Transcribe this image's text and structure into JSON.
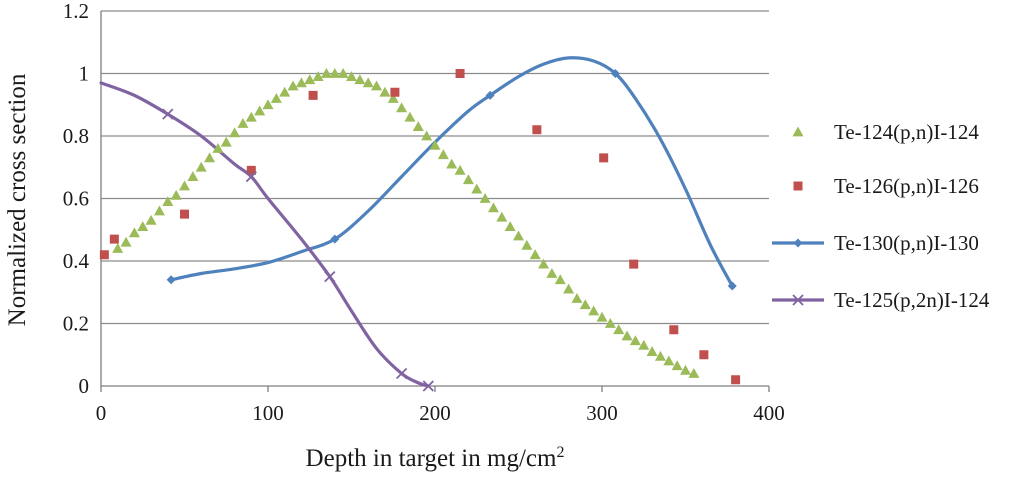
{
  "chart_data": {
    "type": "scatter",
    "xlabel": "Depth in target in mg/cm",
    "xlabel_sup": "2",
    "ylabel": "Normalized cross section",
    "xlim": [
      0,
      400
    ],
    "ylim": [
      0,
      1.2
    ],
    "x_ticks": [
      "0",
      "100",
      "200",
      "300",
      "400"
    ],
    "y_ticks": [
      "0",
      "0.2",
      "0.4",
      "0.6",
      "0.8",
      "1",
      "1.2"
    ],
    "grid": "horizontal",
    "legend_position": "right",
    "series": [
      {
        "name": "Te-124(p,n)I-124",
        "marker": "triangle",
        "line": false,
        "color": "#9BBB59",
        "x": [
          10,
          15,
          20,
          25,
          30,
          35,
          40,
          45,
          50,
          55,
          60,
          65,
          70,
          75,
          80,
          85,
          90,
          95,
          100,
          105,
          110,
          115,
          120,
          125,
          130,
          135,
          140,
          145,
          150,
          155,
          160,
          165,
          170,
          175,
          180,
          185,
          190,
          195,
          200,
          205,
          210,
          215,
          220,
          225,
          230,
          235,
          240,
          245,
          250,
          255,
          260,
          265,
          270,
          275,
          280,
          285,
          290,
          295,
          300,
          305,
          310,
          315,
          320,
          325,
          330,
          335,
          340,
          345,
          350,
          355
        ],
        "y": [
          0.44,
          0.46,
          0.49,
          0.51,
          0.53,
          0.56,
          0.59,
          0.61,
          0.64,
          0.67,
          0.7,
          0.73,
          0.76,
          0.78,
          0.81,
          0.84,
          0.86,
          0.88,
          0.9,
          0.92,
          0.94,
          0.96,
          0.97,
          0.98,
          0.99,
          1.0,
          1.0,
          1.0,
          0.99,
          0.98,
          0.97,
          0.96,
          0.94,
          0.92,
          0.89,
          0.86,
          0.83,
          0.8,
          0.77,
          0.74,
          0.71,
          0.69,
          0.66,
          0.63,
          0.6,
          0.57,
          0.54,
          0.51,
          0.48,
          0.45,
          0.42,
          0.39,
          0.36,
          0.34,
          0.31,
          0.28,
          0.26,
          0.24,
          0.22,
          0.2,
          0.18,
          0.16,
          0.145,
          0.13,
          0.11,
          0.095,
          0.08,
          0.065,
          0.05,
          0.04
        ]
      },
      {
        "name": "Te-126(p,n)I-126",
        "marker": "square",
        "line": false,
        "color": "#C0504D",
        "x": [
          2,
          8,
          50,
          90,
          127,
          176,
          215,
          261,
          301,
          319,
          343,
          361,
          380
        ],
        "y": [
          0.42,
          0.47,
          0.55,
          0.69,
          0.93,
          0.94,
          1.0,
          0.82,
          0.73,
          0.39,
          0.18,
          0.1,
          0.02
        ]
      },
      {
        "name": "Te-130(p,n)I-130",
        "marker": "diamond",
        "line": true,
        "color": "#4F81BD",
        "x": [
          42,
          140,
          233,
          308,
          378
        ],
        "y": [
          0.34,
          0.47,
          0.93,
          1.0,
          0.32
        ],
        "curve_x": [
          42,
          60,
          80,
          100,
          120,
          140,
          160,
          180,
          200,
          220,
          233,
          250,
          265,
          280,
          295,
          308,
          320,
          335,
          350,
          365,
          378
        ],
        "curve_y": [
          0.34,
          0.36,
          0.375,
          0.395,
          0.43,
          0.47,
          0.56,
          0.67,
          0.78,
          0.88,
          0.93,
          0.99,
          1.03,
          1.05,
          1.04,
          1.0,
          0.92,
          0.79,
          0.63,
          0.45,
          0.32
        ]
      },
      {
        "name": "Te-125(p,2n)I-124",
        "marker": "x",
        "line": true,
        "color": "#8064A2",
        "x": [
          40,
          90,
          137,
          180,
          196
        ],
        "y": [
          0.87,
          0.67,
          0.35,
          0.04,
          0.0
        ],
        "curve_x": [
          0,
          20,
          40,
          60,
          80,
          90,
          100,
          120,
          137,
          150,
          165,
          180,
          190,
          196
        ],
        "curve_y": [
          0.97,
          0.93,
          0.87,
          0.8,
          0.71,
          0.67,
          0.6,
          0.47,
          0.35,
          0.24,
          0.12,
          0.04,
          0.01,
          0.0
        ]
      }
    ]
  }
}
